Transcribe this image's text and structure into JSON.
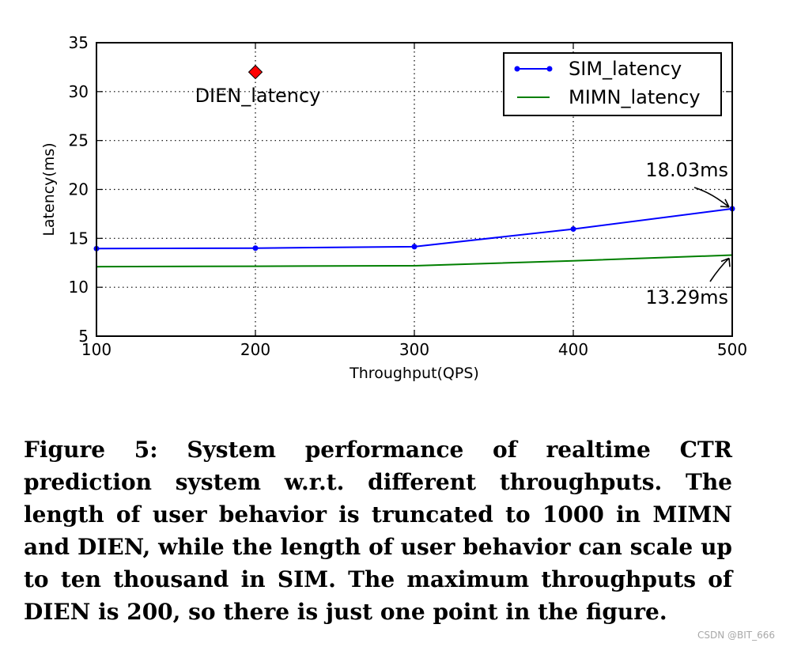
{
  "chart_data": {
    "type": "line",
    "title": "",
    "xlabel": "Throughput(QPS)",
    "ylabel": "Latency(ms)",
    "xlim": [
      100,
      500
    ],
    "ylim": [
      5,
      35
    ],
    "xticks": [
      100,
      200,
      300,
      400,
      500
    ],
    "yticks": [
      5,
      10,
      15,
      20,
      25,
      30,
      35
    ],
    "grid": true,
    "legend_position": "top-right",
    "series": [
      {
        "name": "SIM_latency",
        "color": "#0000ff",
        "marker": "dot",
        "x": [
          100,
          200,
          300,
          400,
          500
        ],
        "y": [
          13.95,
          14.0,
          14.15,
          15.95,
          18.03
        ]
      },
      {
        "name": "MIMN_latency",
        "color": "#007f00",
        "marker": "none",
        "x": [
          100,
          200,
          300,
          400,
          500
        ],
        "y": [
          12.1,
          12.15,
          12.2,
          12.7,
          13.29
        ]
      }
    ],
    "points": [
      {
        "name": "DIEN_latency",
        "x": 200,
        "y": 32,
        "color": "#ff0000",
        "marker": "diamond"
      }
    ],
    "annotations": [
      {
        "text": "18.03ms",
        "x": 500,
        "y": 18.03
      },
      {
        "text": "13.29ms",
        "x": 500,
        "y": 13.29
      }
    ]
  },
  "caption": "Figure 5: System performance of realtime CTR prediction system w.r.t. different throughputs. The length of user behavior is truncated to 1000 in MIMN and DIEN, while the length of user behavior can scale up to ten thousand in SIM. The maximum throughputs of DIEN is 200, so there is just one point in the figure.",
  "watermark": "CSDN @BIT_666"
}
